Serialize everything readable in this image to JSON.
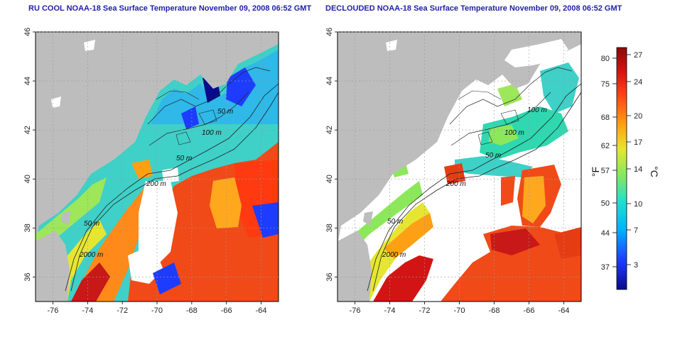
{
  "left_panel": {
    "title": "RU COOL NOAA-18 Sea Surface Temperature November 09, 2008 06:52 GMT"
  },
  "right_panel": {
    "title": "DECLOUDED NOAA-18 Sea Surface Temperature November 09, 2008 06:52 GMT"
  },
  "axes": {
    "lon_ticks": [
      "-76",
      "-74",
      "-72",
      "-70",
      "-68",
      "-66",
      "-64"
    ],
    "lat_ticks": [
      "46",
      "44",
      "42",
      "40",
      "38",
      "36"
    ]
  },
  "contour_labels": {
    "left": [
      "100 m",
      "50 m",
      "50 m",
      "200 m",
      "50 m",
      "2000 m"
    ],
    "right": [
      "100 m",
      "100 m",
      "50 m",
      "200 m",
      "50 m",
      "2000 m"
    ]
  },
  "colorbar": {
    "f_label": "°F",
    "c_label": "°C",
    "f_ticks": [
      "80",
      "75",
      "68",
      "62",
      "57",
      "50",
      "44",
      "37"
    ],
    "c_ticks": [
      "27",
      "24",
      "20",
      "17",
      "14",
      "10",
      "7",
      "3"
    ]
  },
  "colors": {
    "land": "#bdbdbd",
    "cloud": "#ffffff",
    "title": "#1f1fa8",
    "ramp": [
      "#0a0a8c",
      "#1e3cff",
      "#00b4ff",
      "#28e0c8",
      "#8ce85a",
      "#e6e632",
      "#ffa014",
      "#ff4614",
      "#d21414",
      "#8c0a0a"
    ]
  }
}
